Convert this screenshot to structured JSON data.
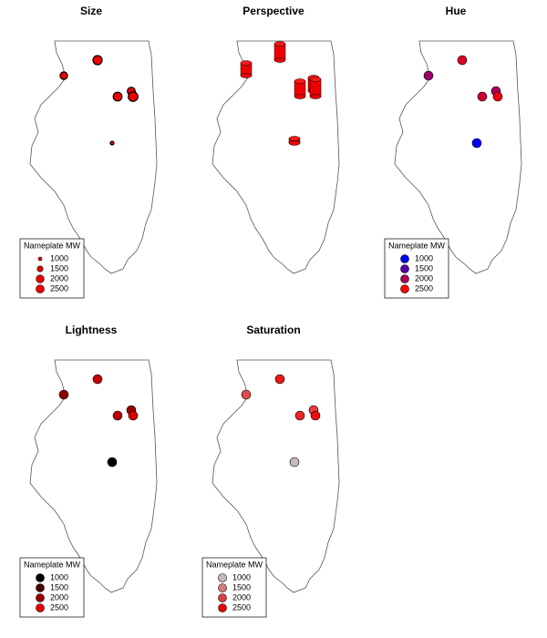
{
  "legend_title": "Nameplate MW",
  "legend_values": [
    1000,
    1500,
    2000,
    2500
  ],
  "panels": [
    {
      "title": "Size",
      "encoding": "size",
      "legend": true
    },
    {
      "title": "Perspective",
      "encoding": "perspective",
      "legend": false
    },
    {
      "title": "Hue",
      "encoding": "hue",
      "legend": true
    },
    {
      "title": "Lightness",
      "encoding": "lightness",
      "legend": true
    },
    {
      "title": "Saturation",
      "encoding": "saturation",
      "legend": true
    }
  ],
  "plants": [
    {
      "mw": 1900
    },
    {
      "mw": 2300
    },
    {
      "mw": 2200
    },
    {
      "mw": 2000
    },
    {
      "mw": 2400
    },
    {
      "mw": 1000
    }
  ]
}
